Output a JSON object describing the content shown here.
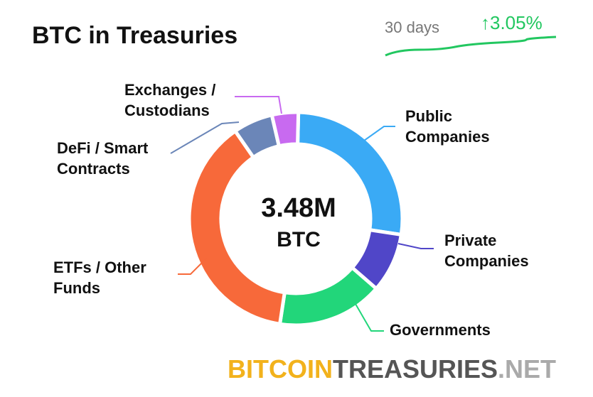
{
  "chart_data": {
    "type": "donut",
    "title": "BTC in Treasuries",
    "period": "30 days",
    "change": "↑3.05%",
    "center_value": "3.48M",
    "center_unit": "BTC",
    "series": [
      {
        "name": [
          "Public",
          "Companies"
        ],
        "color": "#3aaaf5",
        "value": 27
      },
      {
        "name": [
          "Private",
          "Companies"
        ],
        "color": "#5046c8",
        "value": 9
      },
      {
        "name": [
          "Governments"
        ],
        "color": "#22d67a",
        "value": 16
      },
      {
        "name": [
          "ETFs / Other",
          "Funds"
        ],
        "color": "#f7693a",
        "value": 38
      },
      {
        "name": [
          "DeFi / Smart",
          "Contracts"
        ],
        "color": "#6b86b8",
        "value": 6
      },
      {
        "name": [
          "Exchanges /",
          "Custodians"
        ],
        "color": "#c86af0",
        "value": 4
      }
    ],
    "brand": [
      "BITCOIN",
      "TREASURIES",
      ".NET"
    ]
  }
}
